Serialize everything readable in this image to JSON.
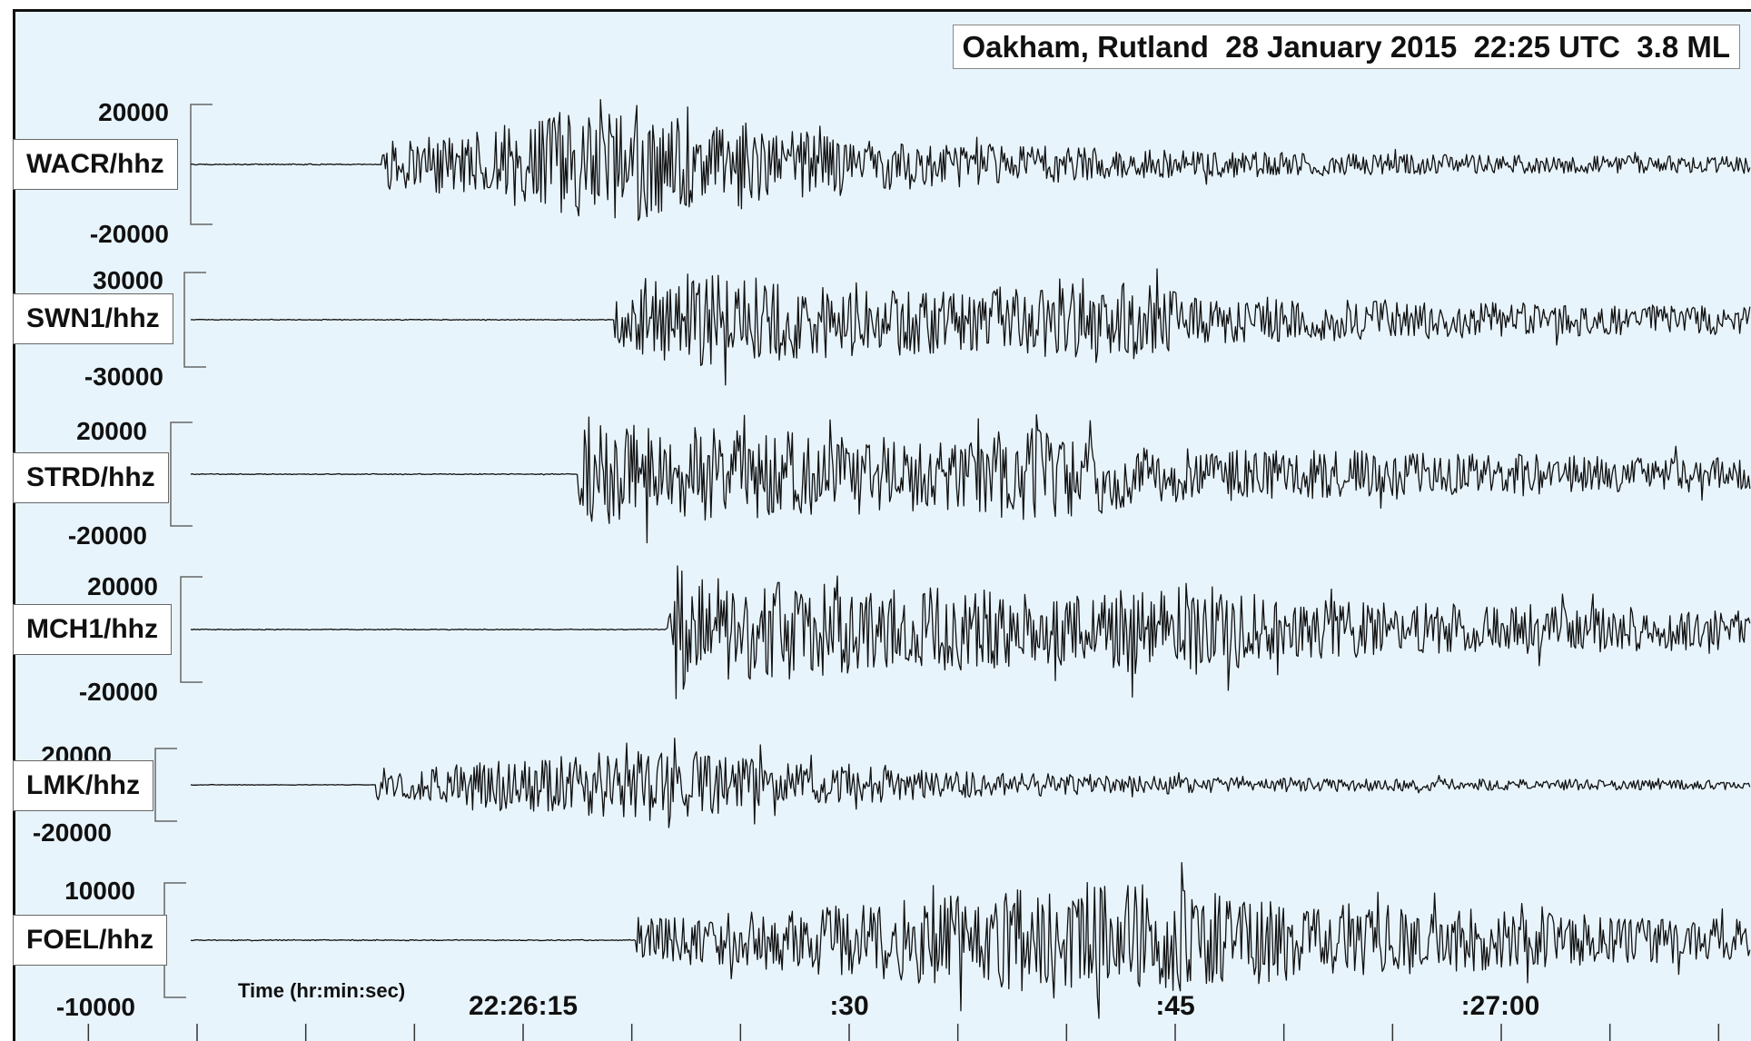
{
  "chart_data": {
    "type": "line",
    "title": "Oakham, Rutland  28 January 2015  22:25 UTC  3.8 ML",
    "xlabel": "Time (hr:min:sec)",
    "x_ticks": [
      {
        "label": "22:26:15",
        "seconds": 0
      },
      {
        "label": ":30",
        "seconds": 15
      },
      {
        "label": ":45",
        "seconds": 30
      },
      {
        "label": ":27:00",
        "seconds": 45
      }
    ],
    "x_range_seconds": [
      -20,
      56
    ],
    "minor_tick_step_seconds": 5,
    "line_color": "#111111",
    "background_color": "#e8f4fc",
    "series": [
      {
        "name": "WACR/hhz",
        "amp_max": "20000",
        "amp_min": "-20000",
        "scale": 20000,
        "onset": -6.5,
        "peak": 5,
        "decay": 12,
        "burst2": 0,
        "noise": 1400
      },
      {
        "name": "SWN1/hhz",
        "amp_max": "30000",
        "amp_min": "-30000",
        "scale": 30000,
        "onset": 4.2,
        "peak": 6.5,
        "decay": 30,
        "burst2": 26,
        "noise": 700
      },
      {
        "name": "STRD/hhz",
        "amp_max": "20000",
        "amp_min": "-20000",
        "scale": 20000,
        "onset": 2.5,
        "peak": 3,
        "decay": 35,
        "burst2": 24,
        "noise": 700
      },
      {
        "name": "MCH1/hhz",
        "amp_max": "20000",
        "amp_min": "-20000",
        "scale": 20000,
        "onset": 6.6,
        "peak": 7,
        "decay": 40,
        "burst2": 30,
        "noise": 600
      },
      {
        "name": "LMK/hhz",
        "amp_max": "20000",
        "amp_min": "-20000",
        "scale": 20000,
        "onset": -6.8,
        "peak": 5.5,
        "decay": 12,
        "burst2": 0,
        "noise": 1500
      },
      {
        "name": "FOEL/hhz",
        "amp_max": "10000",
        "amp_min": "-10000",
        "scale": 10000,
        "onset": 5.2,
        "peak": 27,
        "decay": 22,
        "burst2": 29,
        "noise": 800
      }
    ]
  }
}
